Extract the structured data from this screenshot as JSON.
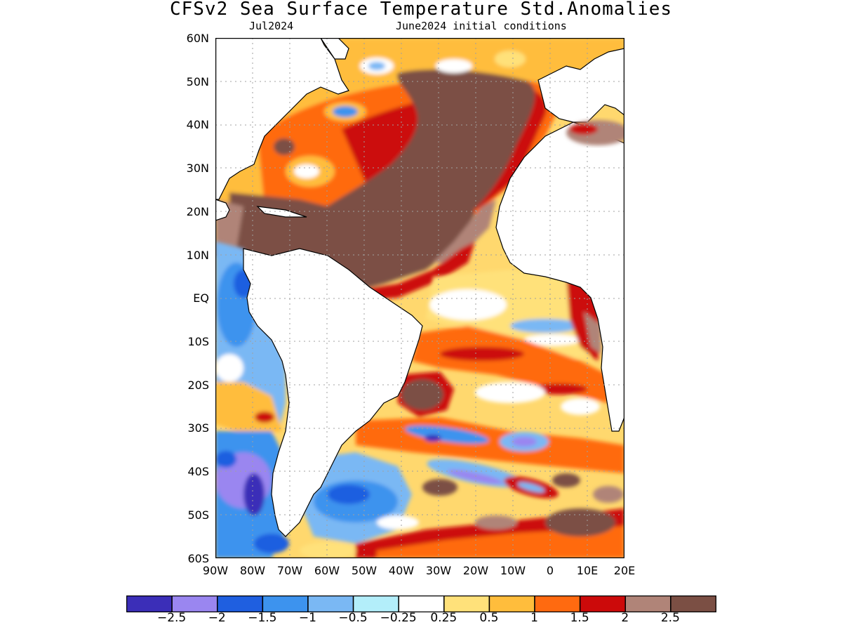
{
  "title": "CFSv2 Sea Surface Temperature Std.Anomalies",
  "subtitle_left": "Jul2024",
  "subtitle_right": "June2024 initial conditions",
  "lat_labels": [
    "60N",
    "50N",
    "40N",
    "30N",
    "20N",
    "10N",
    "EQ",
    "10S",
    "20S",
    "30S",
    "40S",
    "50S",
    "60S"
  ],
  "lon_labels": [
    "90W",
    "80W",
    "70W",
    "60W",
    "50W",
    "40W",
    "30W",
    "20W",
    "10W",
    "0",
    "10E",
    "20E"
  ],
  "colorbar": {
    "colors": [
      "#3b2eb8",
      "#9a86f0",
      "#1f5fe0",
      "#3d93ee",
      "#7ab8f4",
      "#b3eefa",
      "#ffffff",
      "#ffe17a",
      "#ffbd3c",
      "#ff6a10",
      "#cc0a0a",
      "#b08478",
      "#7b4f44"
    ],
    "labels": [
      "−2.5",
      "−2",
      "−1.5",
      "−1",
      "−0.5",
      "−0.25",
      "0.25",
      "0.5",
      "1",
      "1.5",
      "2",
      "2.5"
    ]
  },
  "map": {
    "extent": {
      "lon": [
        -90,
        20
      ],
      "lat": [
        -60,
        60
      ]
    },
    "grid_lines": "dotted every 10 degrees",
    "region": "Atlantic Ocean"
  }
}
